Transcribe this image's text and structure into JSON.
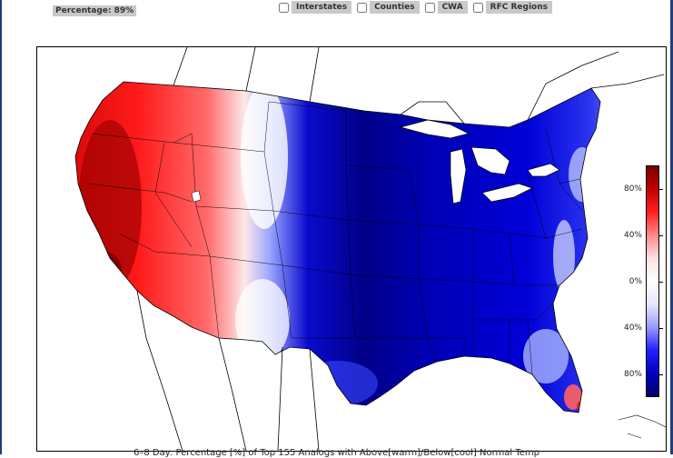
{
  "header": {
    "percentage_label": "Percentage: 89%"
  },
  "overlays": [
    {
      "label": "Interstates",
      "checked": false
    },
    {
      "label": "Counties",
      "checked": false
    },
    {
      "label": "CWA",
      "checked": false
    },
    {
      "label": "RFC Regions",
      "checked": false
    }
  ],
  "colorbar": {
    "ticks": [
      "80%",
      "40%",
      "0%",
      "40%",
      "80%"
    ],
    "warm_color": "#cc0000",
    "cold_color": "#0000cc"
  },
  "caption": "6–8 Day: Percentage [%] of Top 155 Analogs with Above[warm]/Below[cool] Normal Temp"
}
